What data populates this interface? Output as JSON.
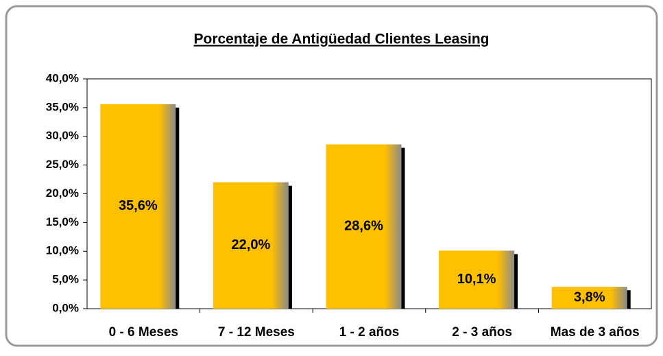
{
  "chart_data": {
    "type": "bar",
    "title": "Porcentaje de Antigüedad Clientes Leasing",
    "categories": [
      "0 - 6 Meses",
      "7 - 12 Meses",
      "1 - 2 años",
      "2 - 3 años",
      "Mas de 3 años"
    ],
    "values": [
      35.6,
      22.0,
      28.6,
      10.1,
      3.8
    ],
    "value_labels": [
      "35,6%",
      "22,0%",
      "28,6%",
      "10,1%",
      "3,8%"
    ],
    "color": "#FFC000",
    "ylim": [
      0,
      40
    ],
    "yticks": [
      {
        "value": 0,
        "label": "0,0%"
      },
      {
        "value": 5,
        "label": "5,0%"
      },
      {
        "value": 10,
        "label": "10,0%"
      },
      {
        "value": 15,
        "label": "15,0%"
      },
      {
        "value": 20,
        "label": "20,0%"
      },
      {
        "value": 25,
        "label": "25,0%"
      },
      {
        "value": 30,
        "label": "30,0%"
      },
      {
        "value": 35,
        "label": "35,0%"
      },
      {
        "value": 40,
        "label": "40,0%"
      }
    ]
  }
}
